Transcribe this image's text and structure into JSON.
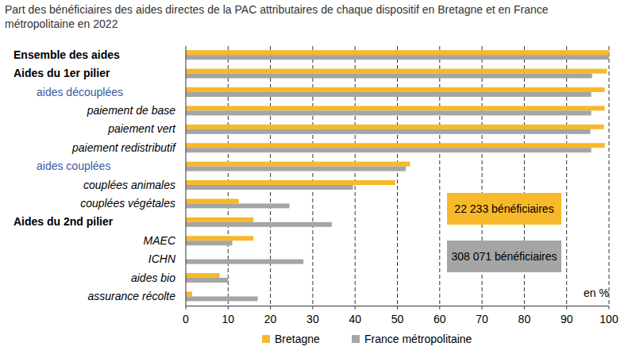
{
  "chart_data": {
    "type": "bar",
    "orientation": "horizontal",
    "title": "Part des bénéficiaires des aides directes de la PAC attributaires de chaque dispositif en Bretagne et en France métropolitaine en 2022",
    "categories": [
      "Ensemble des aides",
      "Aides du 1er pilier",
      "aides découplées",
      "paiement de base",
      "paiement vert",
      "paiement redistributif",
      "aides couplées",
      "couplées animales",
      "couplées végétales",
      "Aides du 2nd pilier",
      "MAEC",
      "ICHN",
      "aides bio",
      "assurance récolte"
    ],
    "series": [
      {
        "name": "Bretagne",
        "color": "#f7b92a",
        "values": [
          100,
          99.5,
          99,
          99,
          98.8,
          99,
          53,
          49.5,
          12.5,
          16,
          16,
          0,
          8,
          1.5
        ]
      },
      {
        "name": "France métropolitaine",
        "color": "#a5a5a5",
        "values": [
          100,
          96,
          95.8,
          95.8,
          95.6,
          95.8,
          52,
          39.5,
          24.5,
          34.5,
          11,
          27.8,
          10,
          17
        ]
      }
    ],
    "xlim": [
      0,
      100
    ],
    "xticks": [
      0,
      10,
      20,
      30,
      40,
      50,
      60,
      70,
      80,
      90,
      100
    ],
    "xlabel": "en %",
    "annotations": [
      "22 233 bénéficiaires",
      "308 071 bénéficiaires"
    ],
    "grid": true,
    "legend": "bottom"
  }
}
